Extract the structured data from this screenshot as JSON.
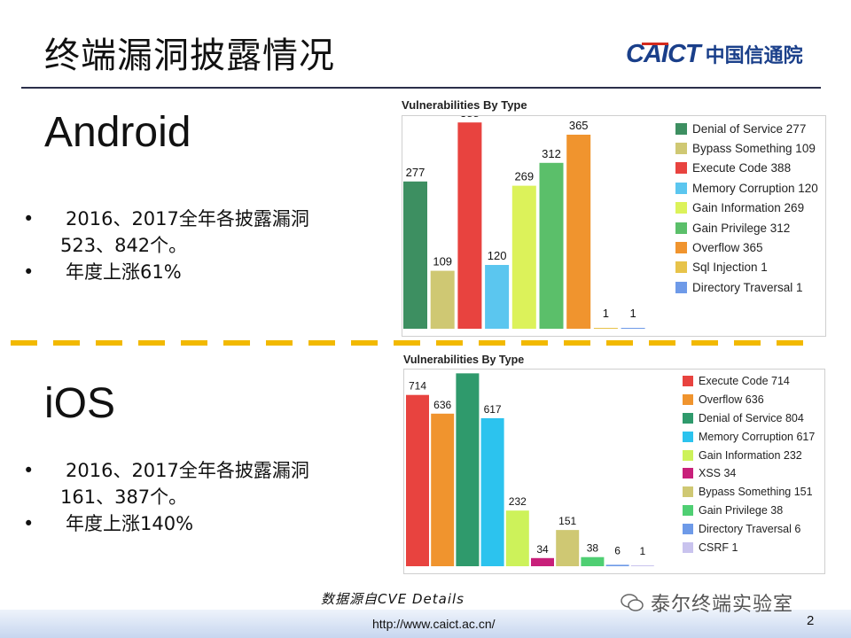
{
  "title": "终端漏洞披露情况",
  "logo": {
    "en": "CAICT",
    "zh": "中国信通院"
  },
  "android": {
    "heading": "Android",
    "bullets": [
      {
        "mark": "•",
        "line1": "2016、2017全年各披露漏洞",
        "line2": "523、842个。"
      },
      {
        "mark": "•",
        "line1": "年度上涨61%",
        "line2": ""
      }
    ]
  },
  "ios": {
    "heading": "iOS",
    "bullets": [
      {
        "mark": "•",
        "line1": "2016、2017全年各披露漏洞",
        "line2": "161、387个。"
      },
      {
        "mark": "•",
        "line1": "年度上涨140%",
        "line2": ""
      }
    ]
  },
  "source": "数据源自CVE Details",
  "footer": {
    "url": "http://www.caict.ac.cn/",
    "page": "2",
    "watermark": "泰尔终端实验室"
  },
  "chart_data": [
    {
      "type": "bar",
      "title": "Vulnerabilities By Type",
      "categories": [
        "Denial of Service",
        "Bypass Something",
        "Execute Code",
        "Memory Corruption",
        "Gain Information",
        "Gain Privilege",
        "Overflow",
        "Sql Injection",
        "Directory Traversal"
      ],
      "values": [
        277,
        109,
        388,
        120,
        269,
        312,
        365,
        1,
        1
      ],
      "colors": [
        "#3d8f61",
        "#cfc873",
        "#e8433f",
        "#5bc6ef",
        "#dcf25a",
        "#5bbf6a",
        "#f0942e",
        "#e7c34a",
        "#6e9ae8"
      ],
      "legend": [
        "Denial of Service 277",
        "Bypass Something 109",
        "Execute Code 388",
        "Memory Corruption 120",
        "Gain Information 269",
        "Gain Privilege 312",
        "Overflow 365",
        "Sql Injection 1",
        "Directory Traversal 1"
      ],
      "legend_position": "right",
      "ylim": [
        0,
        400
      ]
    },
    {
      "type": "bar",
      "title": "Vulnerabilities By Type",
      "categories": [
        "Execute Code",
        "Overflow",
        "Denial of Service",
        "Memory Corruption",
        "Gain Information",
        "XSS",
        "Bypass Something",
        "Gain Privilege",
        "Directory Traversal",
        "CSRF"
      ],
      "values": [
        714,
        636,
        804,
        617,
        232,
        34,
        151,
        38,
        6,
        1
      ],
      "colors": [
        "#e8433f",
        "#f0942e",
        "#2f9a6c",
        "#2cc3ee",
        "#cdf25a",
        "#c8207a",
        "#cfc873",
        "#4fcf73",
        "#6e9ae8",
        "#c9c3ee"
      ],
      "legend": [
        "Execute Code 714",
        "Overflow 636",
        "Denial of Service 804",
        "Memory Corruption 617",
        "Gain Information 232",
        "XSS 34",
        "Bypass Something 151",
        "Gain Privilege 38",
        "Directory Traversal 6",
        "CSRF 1"
      ],
      "legend_position": "right",
      "ylim": [
        0,
        820
      ]
    }
  ]
}
